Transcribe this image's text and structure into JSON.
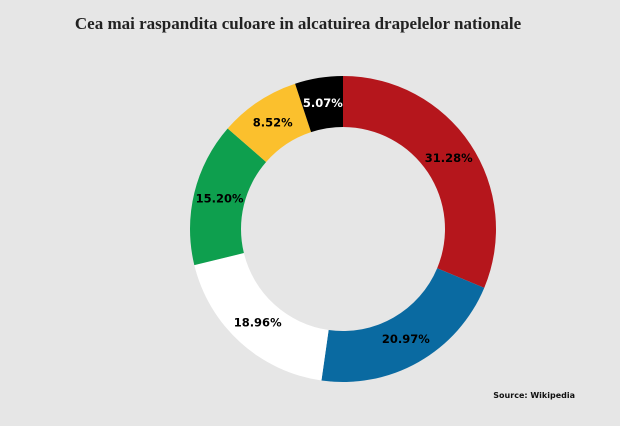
{
  "chart_data": {
    "type": "donut",
    "title": "Cea mai raspandita culoare in alcatuirea drapelelor nationale",
    "values": [
      31.28,
      20.97,
      18.96,
      15.2,
      8.52,
      5.07
    ],
    "value_labels": [
      "31.28%",
      "20.97%",
      "18.96%",
      "15.20%",
      "8.52%",
      "5.07%"
    ],
    "colors": [
      "#b5161c",
      "#0a6aa1",
      "#ffffff",
      "#0e9f4e",
      "#fbc02d",
      "#000000"
    ],
    "source": "Source: Wikipedia"
  }
}
